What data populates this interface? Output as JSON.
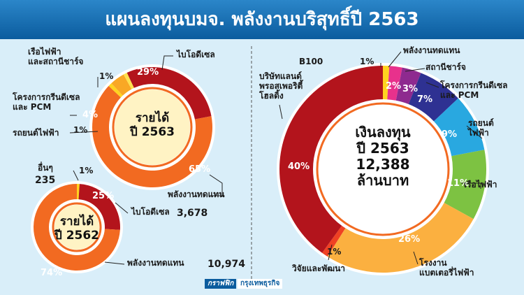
{
  "title": "แผนลงทุนบมจ. พลังงานบริสุทธิ์ปี 2563",
  "credit": [
    "กราฟฟิก",
    "กรุงเทพธุรกิจ"
  ],
  "chart_data": [
    {
      "type": "donut",
      "center_label": "รายได้\nปี 2563",
      "categories": [
        "ไบโอดีเซล",
        "พลังงานทดแทน",
        "รถยนต์ไฟฟ้า",
        "โครงการกรีนดีเซล\nและ PCM",
        "เรือไฟฟ้า\nและสถานีชาร์จ"
      ],
      "values": [
        29,
        65,
        1,
        4,
        1
      ],
      "value_labels": [
        "29%",
        "65%",
        "1%",
        "4%",
        "1%"
      ],
      "colors": [
        "#b3141c",
        "#f26a21",
        "#ffd320",
        "#f9a825",
        "#ffe14d"
      ]
    },
    {
      "type": "donut",
      "center_label": "รายได้\nปี 2562",
      "categories": [
        "อื่นๆ",
        "ไบโอดีเซล",
        "พลังงานทดแทน"
      ],
      "values": [
        1,
        25,
        74
      ],
      "value_labels": [
        "1%",
        "25%",
        "74%"
      ],
      "amounts": [
        235,
        3678,
        10974
      ],
      "amount_labels": [
        "235",
        "3,678",
        "10,974"
      ],
      "colors": [
        "#ffd320",
        "#b3141c",
        "#f26a21"
      ]
    },
    {
      "type": "donut",
      "center_label": "เงินลงทุน\nปี 2563\n12,388\nล้านบาท",
      "categories": [
        "B100",
        "พลังงานทดแทน",
        "สถานีชาร์จ",
        "โครงการกรีนดีเซล\nและ PCM",
        "รถยนต์\nไฟฟ้า",
        "เรือไฟฟ้า",
        "โรงงาน\nแบตเตอรี่ไฟฟ้า",
        "วิจัยและพัฒนา",
        "บริษัทแลนด์\nพรอสเพอริตี้\nโฮลดิ้ง"
      ],
      "values": [
        1,
        2,
        3,
        7,
        9,
        11,
        26,
        1,
        40
      ],
      "value_labels": [
        "1%",
        "2%",
        "3%",
        "7%",
        "9%",
        "11%",
        "26%",
        "1%",
        "40%"
      ],
      "colors": [
        "#ffd320",
        "#e8318c",
        "#8e2a8f",
        "#2e3192",
        "#29a8e0",
        "#7dc242",
        "#fbb040",
        "#ef4123",
        "#b3141c"
      ]
    }
  ]
}
